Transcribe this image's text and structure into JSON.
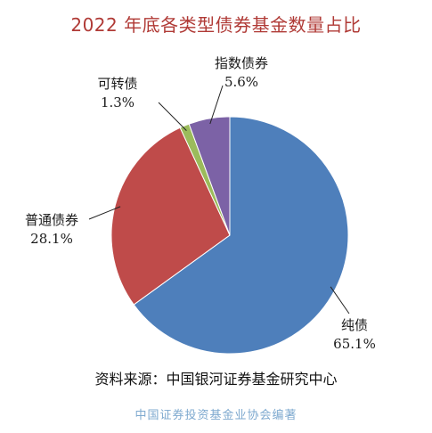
{
  "chart_data": {
    "type": "pie",
    "title": "2022 年底各类型债券基金数量占比",
    "slices": [
      {
        "name": "纯债",
        "value": 65.1,
        "label": "65.1%",
        "color": "#4e7fbb"
      },
      {
        "name": "普通债券",
        "value": 28.1,
        "label": "28.1%",
        "color": "#bf4b4a"
      },
      {
        "name": "可转债",
        "value": 1.3,
        "label": "1.3%",
        "color": "#9bbb5b"
      },
      {
        "name": "指数债券",
        "value": 5.6,
        "label": "5.6%",
        "color": "#7c62a6"
      }
    ],
    "start_angle_deg": 0,
    "direction": "clockwise",
    "legend": "none"
  },
  "source": "资料来源：中国银河证券基金研究中心",
  "footer": "中国证券投资基金业协会编著"
}
